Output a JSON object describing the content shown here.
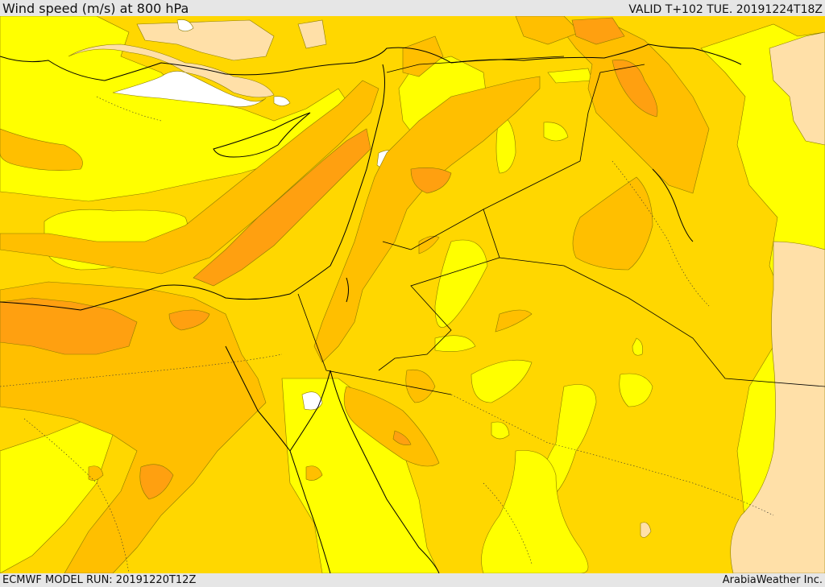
{
  "header": {
    "title": "Wind speed (m/s) at 800 hPa",
    "valid": "VALID T+102 TUE. 20191224T18Z"
  },
  "footer": {
    "model_run": "ECMWF MODEL RUN: 20191220T12Z",
    "credit": "ArabiaWeather Inc."
  },
  "colors": {
    "calm": "#ffffff",
    "light": "#ffe0a8",
    "low": "#ffff00",
    "moderate": "#ffd700",
    "fresh": "#ffbf00",
    "strong": "#ffa010",
    "stronger": "#f08a10",
    "border": "#000000"
  }
}
